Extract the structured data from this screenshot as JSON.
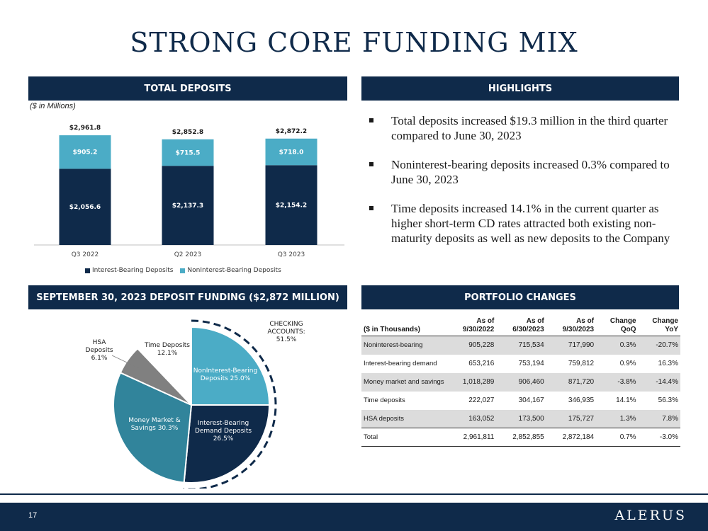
{
  "page": {
    "title": "STRONG CORE FUNDING MIX",
    "page_number": "17",
    "logo_text": "ALERUS"
  },
  "colors": {
    "navy": "#0f2a4a",
    "light_blue": "#4bacc6",
    "teal": "#31849b",
    "gray": "#808080"
  },
  "sections": {
    "total_deposits": "TOTAL DEPOSITS",
    "highlights": "HIGHLIGHTS",
    "deposit_funding": "SEPTEMBER 30, 2023 DEPOSIT FUNDING ($2,872 MILLION)",
    "portfolio_changes": "PORTFOLIO CHANGES"
  },
  "units_note": "($ in Millions)",
  "chart_data": [
    {
      "type": "bar",
      "stacked": true,
      "categories": [
        "Q3 2022",
        "Q2 2023",
        "Q3 2023"
      ],
      "series": [
        {
          "name": "Interest-Bearing Deposits",
          "values": [
            2056.6,
            2137.3,
            2154.2
          ],
          "labels": [
            "$2,056.6",
            "$2,137.3",
            "$2,154.2"
          ],
          "color": "#0f2a4a"
        },
        {
          "name": "NonInterest-Bearing Deposits",
          "values": [
            905.2,
            715.5,
            718.0
          ],
          "labels": [
            "$905.2",
            "$715.5",
            "$718.0"
          ],
          "color": "#4bacc6"
        }
      ],
      "totals": [
        2961.8,
        2852.8,
        2872.2
      ],
      "total_labels": [
        "$2,961.8",
        "$2,852.8",
        "$2,872.2"
      ],
      "ylim": [
        0,
        3250
      ],
      "legend": "bottom"
    },
    {
      "type": "pie",
      "slices": [
        {
          "label_lines": [
            "NonInterest-Bearing",
            "Deposits 25.0%"
          ],
          "value": 25.0,
          "color": "#4bacc6",
          "text_color": "#ffffff"
        },
        {
          "label_lines": [
            "Interest-Bearing",
            "Demand Deposits",
            "26.5%"
          ],
          "value": 26.5,
          "color": "#0f2a4a",
          "text_color": "#ffffff"
        },
        {
          "label_lines": [
            "Money Market &",
            "Savings 30.3%"
          ],
          "value": 30.3,
          "color": "#31849b",
          "text_color": "#ffffff"
        },
        {
          "label_lines": [
            "HSA",
            "Deposits",
            "6.1%"
          ],
          "value": 6.1,
          "color": "#808080",
          "text_color": "#1a1a1a"
        },
        {
          "label_lines": [
            "Time Deposits",
            "12.1%"
          ],
          "value": 12.1,
          "color": "#ffffff",
          "text_color": "#1a1a1a"
        }
      ],
      "annotation": {
        "lines": [
          "CHECKING",
          "ACCOUNTS:",
          "51.5%"
        ],
        "value": 51.5
      }
    }
  ],
  "highlights": [
    "Total deposits increased $19.3 million in the third quarter compared to June 30, 2023",
    "Noninterest-bearing deposits increased 0.3% compared to June 30, 2023",
    "Time deposits increased 14.1% in the current quarter as higher short-term CD rates attracted both existing non-maturity deposits as well as new deposits to the Company"
  ],
  "table": {
    "headers": [
      {
        "line1": "",
        "line2": "($ in Thousands)"
      },
      {
        "line1": "As of",
        "line2": "9/30/2022"
      },
      {
        "line1": "As of",
        "line2": "6/30/2023"
      },
      {
        "line1": "As of",
        "line2": "9/30/2023"
      },
      {
        "line1": "Change",
        "line2": "QoQ"
      },
      {
        "line1": "Change",
        "line2": "YoY"
      }
    ],
    "rows": [
      [
        "Noninterest-bearing",
        "905,228",
        "715,534",
        "717,990",
        "0.3%",
        "-20.7%"
      ],
      [
        "Interest-bearing demand",
        "653,216",
        "753,194",
        "759,812",
        "0.9%",
        "16.3%"
      ],
      [
        "Money market and savings",
        "1,018,289",
        "906,460",
        "871,720",
        "-3.8%",
        "-14.4%"
      ],
      [
        "Time deposits",
        "222,027",
        "304,167",
        "346,935",
        "14.1%",
        "56.3%"
      ],
      [
        "HSA deposits",
        "163,052",
        "173,500",
        "175,727",
        "1.3%",
        "7.8%"
      ],
      [
        "Total",
        "2,961,811",
        "2,852,855",
        "2,872,184",
        "0.7%",
        "-3.0%"
      ]
    ]
  }
}
